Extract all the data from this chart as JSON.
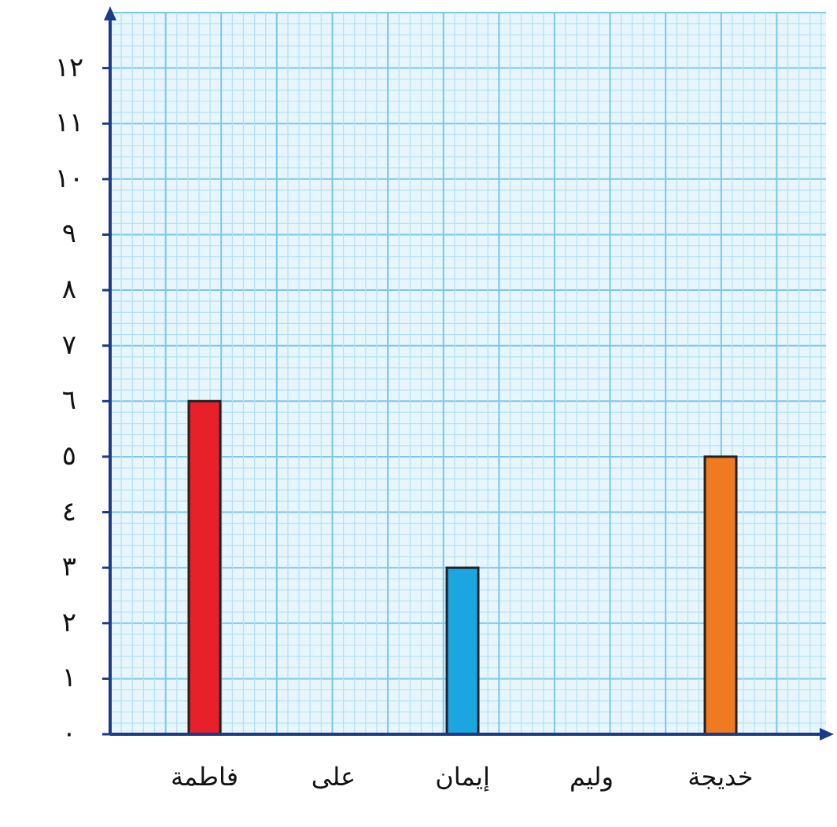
{
  "chart_data": {
    "type": "bar",
    "categories": [
      "فاطمة",
      "على",
      "إيمان",
      "وليم",
      "خديجة"
    ],
    "values": [
      6,
      0,
      3,
      0,
      5
    ],
    "colors": [
      "#e8202a",
      null,
      "#1ba6e0",
      null,
      "#f07a20"
    ],
    "ylim": [
      0,
      13
    ],
    "yticks": [
      {
        "value": 0,
        "label": "٠"
      },
      {
        "value": 1,
        "label": "١"
      },
      {
        "value": 2,
        "label": "٢"
      },
      {
        "value": 3,
        "label": "٣"
      },
      {
        "value": 4,
        "label": "٤"
      },
      {
        "value": 5,
        "label": "٥"
      },
      {
        "value": 6,
        "label": "٦"
      },
      {
        "value": 7,
        "label": "٧"
      },
      {
        "value": 8,
        "label": "٨"
      },
      {
        "value": 9,
        "label": "٩"
      },
      {
        "value": 10,
        "label": "١٠"
      },
      {
        "value": 11,
        "label": "١١"
      },
      {
        "value": 12,
        "label": "١٢"
      }
    ],
    "grid": true
  }
}
